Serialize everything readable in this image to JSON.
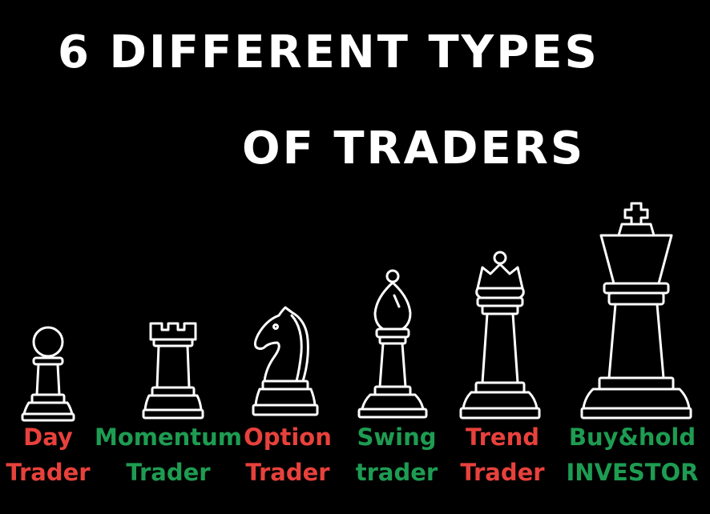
{
  "title": {
    "line1": "6 DIFFERENT TYPES",
    "line2": "OF TRADERS"
  },
  "traders": [
    {
      "line1": "Day",
      "line2": "Trader",
      "piece": "pawn-icon",
      "color": "#e8413c"
    },
    {
      "line1": "Momentum",
      "line2": "Trader",
      "piece": "rook-icon",
      "color": "#1e9c52"
    },
    {
      "line1": "Option",
      "line2": "Trader",
      "piece": "knight-icon",
      "color": "#e8413c"
    },
    {
      "line1": "Swing",
      "line2": "trader",
      "piece": "bishop-icon",
      "color": "#1e9c52"
    },
    {
      "line1": "Trend",
      "line2": "Trader",
      "piece": "queen-icon",
      "color": "#e8413c"
    },
    {
      "line1": "Buy&hold",
      "line2": "INVESTOR",
      "piece": "king-icon",
      "color": "#1e9c52"
    }
  ],
  "colors": {
    "background": "#000000",
    "title": "#ffffff",
    "red": "#e8413c",
    "green": "#1e9c52"
  }
}
